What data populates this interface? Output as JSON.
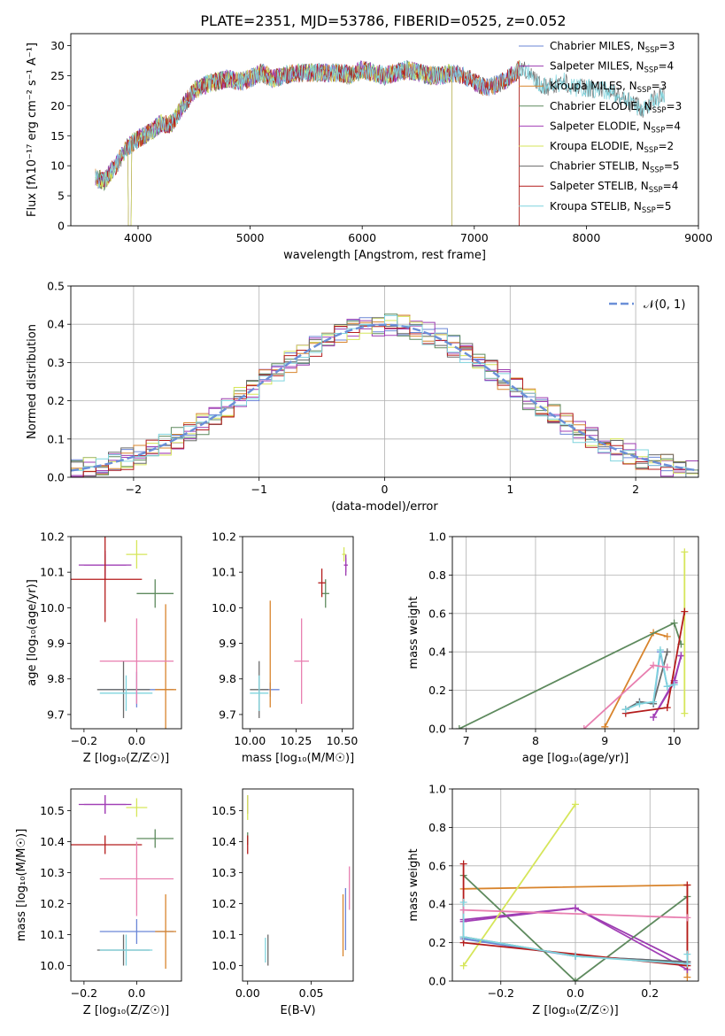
{
  "figure": {
    "title": "PLATE=2351, MJD=53786, FIBERID=0525, z=0.052"
  },
  "colors": {
    "Chabrier MILES": "#6b86d6",
    "Salpeter MILES": "#9b3bb0",
    "Kroupa MILES": "#d8842c",
    "Chabrier ELODIE": "#5e8a5e",
    "Salpeter ELODIE": "#a23fb6",
    "Kroupa ELODIE": "#d6e65a",
    "Chabrier STELIB": "#6a6a6a",
    "Salpeter STELIB": "#b41c1c",
    "Kroupa STELIB": "#7fd4de",
    "gauss": "#6b8fd8",
    "pink": "#e87fb0"
  },
  "chart_data": [
    {
      "id": "spectrum",
      "type": "line",
      "title": "PLATE=2351, MJD=53786, FIBERID=0525, z=0.052",
      "xlabel": "wavelength [Angstrom, rest frame]",
      "ylabel": "Flux [fλ10⁻¹⁷ erg cm⁻² s⁻¹ A⁻¹]",
      "xlim": [
        3400,
        9000
      ],
      "ylim": [
        0,
        32
      ],
      "xticks": [
        "4000",
        "5000",
        "6000",
        "7000",
        "8000",
        "9000"
      ],
      "yticks": [
        "0",
        "5",
        "10",
        "15",
        "20",
        "25",
        "30"
      ],
      "continuum": [
        [
          3600,
          8
        ],
        [
          3700,
          7.5
        ],
        [
          3800,
          10
        ],
        [
          3900,
          13
        ],
        [
          4000,
          14.5
        ],
        [
          4100,
          15.5
        ],
        [
          4200,
          17
        ],
        [
          4300,
          17
        ],
        [
          4400,
          20
        ],
        [
          4500,
          22.5
        ],
        [
          4600,
          23.5
        ],
        [
          4700,
          24
        ],
        [
          4800,
          24.5
        ],
        [
          4900,
          24
        ],
        [
          5000,
          24.5
        ],
        [
          5100,
          25.5
        ],
        [
          5200,
          24.5
        ],
        [
          5300,
          25
        ],
        [
          5400,
          25.5
        ],
        [
          5500,
          25.5
        ],
        [
          5600,
          25.5
        ],
        [
          5700,
          25.5
        ],
        [
          5800,
          25.5
        ],
        [
          5900,
          25
        ],
        [
          6000,
          26
        ],
        [
          6100,
          25.5
        ],
        [
          6200,
          25
        ],
        [
          6300,
          25.5
        ],
        [
          6400,
          26
        ],
        [
          6500,
          25.5
        ],
        [
          6600,
          25
        ],
        [
          6700,
          25
        ],
        [
          6800,
          25.5
        ],
        [
          6900,
          25
        ],
        [
          7000,
          24
        ],
        [
          7100,
          23
        ],
        [
          7200,
          23.5
        ],
        [
          7300,
          24.5
        ],
        [
          7400,
          26
        ],
        [
          7500,
          25.5
        ],
        [
          7600,
          23
        ],
        [
          7700,
          23.5
        ],
        [
          7800,
          24
        ],
        [
          7900,
          23
        ],
        [
          8000,
          23
        ],
        [
          8100,
          22.5
        ],
        [
          8200,
          22.5
        ],
        [
          8300,
          21.5
        ],
        [
          8400,
          20.5
        ],
        [
          8500,
          19.5
        ],
        [
          8600,
          21
        ],
        [
          8700,
          22
        ]
      ],
      "legend_location": "upper right",
      "series": [
        {
          "label": "Chabrier MILES, N",
          "sub": "SSP",
          "sup": "=3",
          "xmax": 7400
        },
        {
          "label": "Salpeter MILES, N",
          "sub": "SSP",
          "sup": "=4",
          "xmax": 7400
        },
        {
          "label": "Kroupa MILES, N",
          "sub": "SSP",
          "sup": "=3",
          "xmax": 7400
        },
        {
          "label": "Chabrier ELODIE, N",
          "sub": "SSP",
          "sup": "=3",
          "xmax": 6800
        },
        {
          "label": "Salpeter ELODIE, N",
          "sub": "SSP",
          "sup": "=4",
          "xmax": 6800
        },
        {
          "label": "Kroupa ELODIE, N",
          "sub": "SSP",
          "sup": "=2",
          "xmax": 6800
        },
        {
          "label": "Chabrier STELIB, N",
          "sub": "SSP",
          "sup": "=5",
          "xmax": 8700
        },
        {
          "label": "Salpeter STELIB, N",
          "sub": "SSP",
          "sup": "=4",
          "xmax": 7400
        },
        {
          "label": "Kroupa STELIB, N",
          "sub": "SSP",
          "sup": "=5",
          "xmax": 8700
        }
      ]
    },
    {
      "id": "residuals",
      "type": "histogram",
      "xlabel": "(data-model)/error",
      "ylabel": "Normed distribution",
      "xlim": [
        -2.5,
        2.5
      ],
      "ylim": [
        0,
        0.5
      ],
      "xticks": [
        "−2",
        "−1",
        "0",
        "1",
        "2"
      ],
      "yticks": [
        "0.0",
        "0.1",
        "0.2",
        "0.3",
        "0.4",
        "0.5"
      ],
      "grid": true,
      "bin_width": 0.1,
      "legend": "𝒩(0, 1)",
      "legend_location": "upper right",
      "gaussian": {
        "mu": 0,
        "sigma": 1
      }
    },
    {
      "id": "age_vs_Z",
      "type": "errorbar",
      "xlabel": "Z [log₁₀(Z/Z☉)]",
      "ylabel": "age  [log₁₀(age/yr)]",
      "xlim": [
        -0.25,
        0.17
      ],
      "ylim": [
        9.66,
        10.2
      ],
      "xticks": [
        "−0.2",
        "0.0"
      ],
      "yticks": [
        "9.7",
        "9.8",
        "9.9",
        "10.0",
        "10.1",
        "10.2"
      ],
      "points": [
        {
          "c": "Chabrier MILES",
          "x": 0.0,
          "y": 9.77,
          "xe": 0.14,
          "ye": 0.05
        },
        {
          "c": "Salpeter MILES",
          "x": -0.12,
          "y": 10.12,
          "xe": 0.1,
          "ye": 0.03
        },
        {
          "c": "Kroupa MILES",
          "x": 0.11,
          "y": 9.77,
          "xe": 0.04,
          "ye": 0.24
        },
        {
          "c": "Chabrier ELODIE",
          "x": 0.07,
          "y": 10.04,
          "xe": 0.07,
          "ye": 0.04
        },
        {
          "c": "Salpeter ELODIE",
          "x": -0.12,
          "y": 10.12,
          "xe": 0.08,
          "ye": 0.04
        },
        {
          "c": "Kroupa ELODIE",
          "x": 0.0,
          "y": 10.15,
          "xe": 0.04,
          "ye": 0.04
        },
        {
          "c": "Chabrier STELIB",
          "x": -0.05,
          "y": 9.77,
          "xe": 0.1,
          "ye": 0.08
        },
        {
          "c": "Salpeter STELIB",
          "x": -0.12,
          "y": 10.08,
          "xe": 0.14,
          "ye": 0.12
        },
        {
          "c": "Kroupa STELIB",
          "x": -0.04,
          "y": 9.76,
          "xe": 0.1,
          "ye": 0.05
        },
        {
          "c": "pink",
          "x": 0.0,
          "y": 9.85,
          "xe": 0.14,
          "ye": 0.12
        }
      ]
    },
    {
      "id": "age_vs_mass",
      "type": "errorbar",
      "xlabel": "mass [log₁₀(M/M☉)]",
      "ylabel": "",
      "xlim": [
        9.96,
        10.56
      ],
      "ylim": [
        9.66,
        10.2
      ],
      "xticks": [
        "10.00",
        "10.25",
        "10.50"
      ],
      "yticks": [
        "9.7",
        "9.8",
        "9.9",
        "10.0",
        "10.1",
        "10.2"
      ],
      "points": [
        {
          "c": "Chabrier MILES",
          "x": 10.11,
          "y": 9.77,
          "xe": 0.05,
          "ye": 0.02
        },
        {
          "c": "Salpeter MILES",
          "x": 10.52,
          "y": 10.12,
          "xe": 0.01,
          "ye": 0.03
        },
        {
          "c": "Kroupa MILES",
          "x": 10.11,
          "y": 9.87,
          "xe": 0.0,
          "ye": 0.15
        },
        {
          "c": "Chabrier ELODIE",
          "x": 10.41,
          "y": 10.04,
          "xe": 0.02,
          "ye": 0.04
        },
        {
          "c": "Salpeter ELODIE",
          "x": 10.52,
          "y": 10.12,
          "xe": 0.01,
          "ye": 0.02
        },
        {
          "c": "Kroupa ELODIE",
          "x": 10.51,
          "y": 10.15,
          "xe": 0.01,
          "ye": 0.02
        },
        {
          "c": "Chabrier STELIB",
          "x": 10.05,
          "y": 9.77,
          "xe": 0.05,
          "ye": 0.08
        },
        {
          "c": "Salpeter STELIB",
          "x": 10.39,
          "y": 10.07,
          "xe": 0.02,
          "ye": 0.04
        },
        {
          "c": "Kroupa STELIB",
          "x": 10.05,
          "y": 9.76,
          "xe": 0.05,
          "ye": 0.05
        },
        {
          "c": "pink",
          "x": 10.28,
          "y": 9.85,
          "xe": 0.04,
          "ye": 0.12
        }
      ]
    },
    {
      "id": "mw_vs_age",
      "type": "line",
      "xlabel": "age  [log₁₀(age/yr)]",
      "ylabel": "mass weight",
      "xlim": [
        6.8,
        10.35
      ],
      "ylim": [
        0,
        1
      ],
      "xticks": [
        "7",
        "8",
        "9",
        "10"
      ],
      "yticks": [
        "0.0",
        "0.2",
        "0.4",
        "0.6",
        "0.8",
        "1.0"
      ],
      "grid": true,
      "series": [
        {
          "c": "Chabrier MILES",
          "x": [
            9.3,
            9.5,
            9.7,
            9.8,
            9.9,
            10.0
          ],
          "y": [
            0.1,
            0.14,
            0.13,
            0.4,
            0.22,
            0.23
          ]
        },
        {
          "c": "Salpeter MILES",
          "x": [
            9.7,
            10.0,
            10.1
          ],
          "y": [
            0.06,
            0.25,
            0.38
          ]
        },
        {
          "c": "Kroupa MILES",
          "x": [
            9.0,
            9.7,
            9.9
          ],
          "y": [
            0.01,
            0.5,
            0.48
          ]
        },
        {
          "c": "Chabrier ELODIE",
          "x": [
            6.9,
            10.0,
            10.1
          ],
          "y": [
            0.0,
            0.55,
            0.44
          ]
        },
        {
          "c": "Salpeter ELODIE",
          "x": [
            9.7,
            10.0,
            10.1
          ],
          "y": [
            0.06,
            0.24,
            0.38
          ]
        },
        {
          "c": "Kroupa ELODIE",
          "x": [
            10.15,
            10.15
          ],
          "y": [
            0.08,
            0.92
          ]
        },
        {
          "c": "Chabrier STELIB",
          "x": [
            9.3,
            9.5,
            9.7,
            9.9
          ],
          "y": [
            0.1,
            0.14,
            0.13,
            0.4
          ]
        },
        {
          "c": "Salpeter STELIB",
          "x": [
            9.3,
            9.9,
            10.15
          ],
          "y": [
            0.08,
            0.11,
            0.61
          ]
        },
        {
          "c": "Kroupa STELIB",
          "x": [
            9.3,
            9.5,
            9.7,
            9.8,
            9.9,
            10.0
          ],
          "y": [
            0.1,
            0.13,
            0.14,
            0.41,
            0.22,
            0.23
          ]
        },
        {
          "c": "pink",
          "x": [
            8.7,
            9.7,
            9.9
          ],
          "y": [
            0.0,
            0.33,
            0.32
          ]
        }
      ]
    },
    {
      "id": "mass_vs_Z",
      "type": "errorbar",
      "xlabel": "Z [log₁₀(Z/Z☉)]",
      "ylabel": "mass [log₁₀(M/M☉)]",
      "xlim": [
        -0.25,
        0.17
      ],
      "ylim": [
        9.95,
        10.57
      ],
      "xticks": [
        "−0.2",
        "0.0"
      ],
      "yticks": [
        "10.0",
        "10.1",
        "10.2",
        "10.3",
        "10.4",
        "10.5"
      ],
      "points": [
        {
          "c": "Chabrier MILES",
          "x": 0.0,
          "y": 10.11,
          "xe": 0.14,
          "ye": 0.04
        },
        {
          "c": "Salpeter MILES",
          "x": -0.12,
          "y": 10.52,
          "xe": 0.1,
          "ye": 0.03
        },
        {
          "c": "Kroupa MILES",
          "x": 0.11,
          "y": 10.11,
          "xe": 0.04,
          "ye": 0.12
        },
        {
          "c": "Chabrier ELODIE",
          "x": 0.07,
          "y": 10.41,
          "xe": 0.07,
          "ye": 0.03
        },
        {
          "c": "Salpeter ELODIE",
          "x": -0.12,
          "y": 10.52,
          "xe": 0.08,
          "ye": 0.03
        },
        {
          "c": "Kroupa ELODIE",
          "x": 0.0,
          "y": 10.51,
          "xe": 0.04,
          "ye": 0.03
        },
        {
          "c": "Chabrier STELIB",
          "x": -0.05,
          "y": 10.05,
          "xe": 0.1,
          "ye": 0.05
        },
        {
          "c": "Salpeter STELIB",
          "x": -0.12,
          "y": 10.39,
          "xe": 0.14,
          "ye": 0.03
        },
        {
          "c": "Kroupa STELIB",
          "x": -0.04,
          "y": 10.05,
          "xe": 0.1,
          "ye": 0.05
        },
        {
          "c": "pink",
          "x": 0.0,
          "y": 10.28,
          "xe": 0.14,
          "ye": 0.12
        }
      ]
    },
    {
      "id": "mass_vs_ebv",
      "type": "errorbar",
      "xlabel": "E(B-V)",
      "ylabel": "",
      "xlim": [
        -0.004,
        0.083
      ],
      "ylim": [
        9.95,
        10.57
      ],
      "xticks": [
        "0.00",
        "0.05"
      ],
      "yticks": [
        "10.0",
        "10.1",
        "10.2",
        "10.3",
        "10.4",
        "10.5"
      ],
      "points": [
        {
          "c": "Chabrier MILES",
          "x": 0.077,
          "y": 10.15,
          "xe": 0.0,
          "ye": 0.1
        },
        {
          "c": "Kroupa MILES",
          "x": 0.075,
          "y": 10.13,
          "xe": 0.0,
          "ye": 0.1
        },
        {
          "c": "Salpeter MILES",
          "x": 0.0,
          "y": 10.52,
          "xe": 0.0,
          "ye": 0.03
        },
        {
          "c": "Chabrier ELODIE",
          "x": 0.0,
          "y": 10.41,
          "xe": 0.0,
          "ye": 0.02
        },
        {
          "c": "Kroupa ELODIE",
          "x": 0.0,
          "y": 10.51,
          "xe": 0.0,
          "ye": 0.04
        },
        {
          "c": "Chabrier STELIB",
          "x": 0.016,
          "y": 10.05,
          "xe": 0.0,
          "ye": 0.05
        },
        {
          "c": "Salpeter STELIB",
          "x": 0.0,
          "y": 10.39,
          "xe": 0.0,
          "ye": 0.03
        },
        {
          "c": "Kroupa STELIB",
          "x": 0.014,
          "y": 10.05,
          "xe": 0.0,
          "ye": 0.04
        },
        {
          "c": "pink",
          "x": 0.08,
          "y": 10.25,
          "xe": 0.0,
          "ye": 0.07
        }
      ]
    },
    {
      "id": "mw_vs_Z",
      "type": "line",
      "xlabel": "Z [log₁₀(Z/Z☉)]",
      "ylabel": "mass weight",
      "xlim": [
        -0.33,
        0.33
      ],
      "ylim": [
        0,
        1
      ],
      "xticks": [
        "−0.2",
        "0.0",
        "0.2"
      ],
      "yticks": [
        "0.0",
        "0.2",
        "0.4",
        "0.6",
        "0.8",
        "1.0"
      ],
      "grid": true,
      "series": [
        {
          "c": "Chabrier MILES",
          "x": [
            -0.3,
            0.0,
            0.3
          ],
          "y": [
            0.22,
            0.13,
            0.1
          ]
        },
        {
          "c": "Salpeter MILES",
          "x": [
            -0.3,
            0.0,
            0.3
          ],
          "y": [
            0.32,
            0.38,
            0.09
          ]
        },
        {
          "c": "Kroupa MILES",
          "x": [
            -0.3,
            0.3,
            0.3
          ],
          "y": [
            0.48,
            0.5,
            0.02
          ]
        },
        {
          "c": "Chabrier ELODIE",
          "x": [
            -0.3,
            0.0,
            0.3
          ],
          "y": [
            0.55,
            0.0,
            0.44
          ]
        },
        {
          "c": "Salpeter ELODIE",
          "x": [
            -0.3,
            0.0,
            0.3
          ],
          "y": [
            0.31,
            0.38,
            0.06
          ]
        },
        {
          "c": "Kroupa ELODIE",
          "x": [
            -0.3,
            0.0
          ],
          "y": [
            0.08,
            0.92
          ]
        },
        {
          "c": "Chabrier STELIB",
          "x": [
            -0.3,
            0.0,
            0.3
          ],
          "y": [
            0.23,
            0.13,
            0.1
          ]
        },
        {
          "c": "Salpeter STELIB",
          "x": [
            -0.3,
            -0.3,
            0.3,
            0.3
          ],
          "y": [
            0.61,
            0.2,
            0.08,
            0.5
          ]
        },
        {
          "c": "Kroupa STELIB",
          "x": [
            -0.3,
            -0.3,
            0.0,
            0.3,
            0.3
          ],
          "y": [
            0.41,
            0.23,
            0.13,
            0.09,
            0.14
          ]
        },
        {
          "c": "pink",
          "x": [
            -0.3,
            0.3
          ],
          "y": [
            0.37,
            0.33
          ]
        }
      ]
    }
  ]
}
